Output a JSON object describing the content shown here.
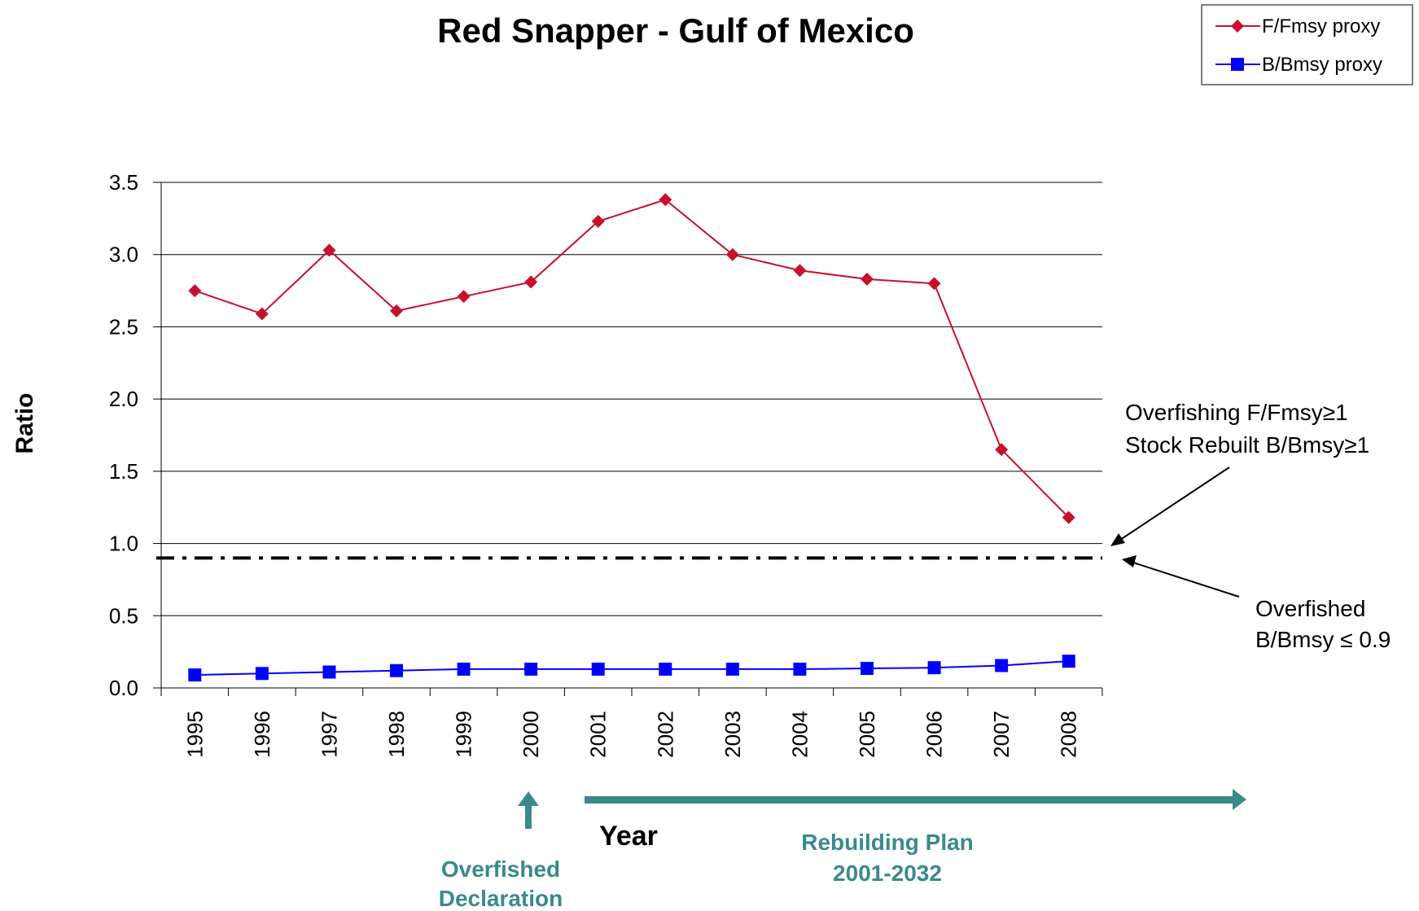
{
  "chart_data": {
    "type": "line",
    "title": "Red Snapper - Gulf of Mexico",
    "xlabel": "Year",
    "ylabel": "Ratio",
    "categories": [
      "1995",
      "1996",
      "1997",
      "1998",
      "1999",
      "2000",
      "2001",
      "2002",
      "2003",
      "2004",
      "2005",
      "2006",
      "2007",
      "2008"
    ],
    "ylim": [
      0,
      3.5
    ],
    "yticks": [
      "0.0",
      "0.5",
      "1.0",
      "1.5",
      "2.0",
      "2.5",
      "3.0",
      "3.5"
    ],
    "grid": true,
    "legend_position": "top-right",
    "series": [
      {
        "name": "F/Fmsy proxy",
        "color": "#c8102e",
        "marker": "diamond",
        "values": [
          2.75,
          2.59,
          3.03,
          2.61,
          2.71,
          2.81,
          3.23,
          3.38,
          3.0,
          2.89,
          2.83,
          2.8,
          1.65,
          1.18
        ]
      },
      {
        "name": "B/Bmsy proxy",
        "color": "#0000ff",
        "marker": "square",
        "values": [
          0.09,
          0.1,
          0.11,
          0.12,
          0.13,
          0.13,
          0.13,
          0.13,
          0.13,
          0.13,
          0.135,
          0.14,
          0.155,
          0.185
        ]
      }
    ],
    "threshold": {
      "value": 0.9,
      "style": "dash-dot",
      "color": "#000000"
    },
    "annotations": {
      "overfishing_line1": "Overfishing F/Fmsy≥1",
      "overfishing_line2": "Stock Rebuilt B/Bmsy≥1",
      "overfished_line1": "Overfished",
      "overfished_line2": "B/Bmsy ≤ 0.9",
      "declaration_line1": "Overfished",
      "declaration_line2": "Declaration",
      "rebuilding_line1": "Rebuilding Plan",
      "rebuilding_line2": "2001-2032"
    },
    "accent_color": "#3a8a8c"
  }
}
